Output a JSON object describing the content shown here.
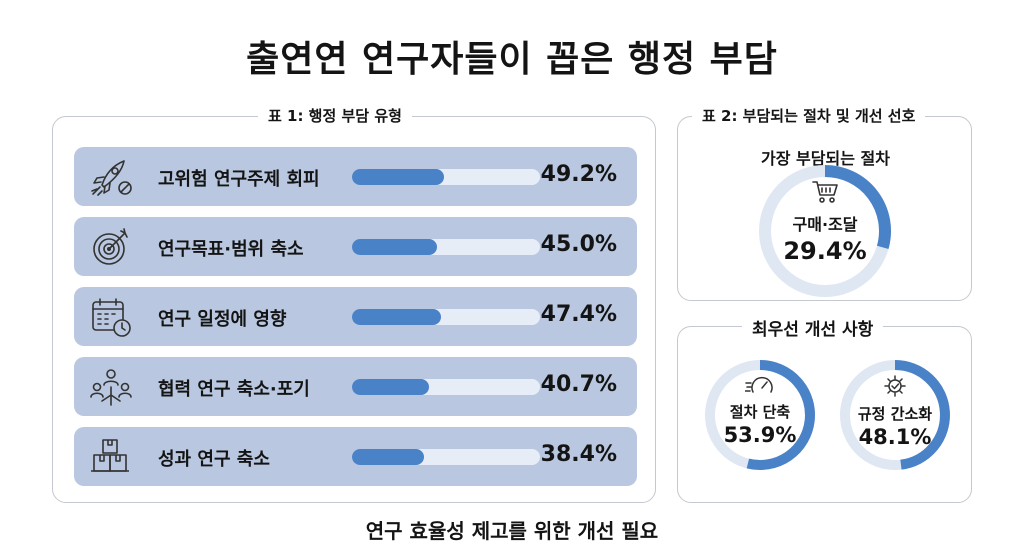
{
  "title": "출연연 연구자들이 꼽은 행정 부담",
  "footer": "연구 효율성 제고를 위한 개선 필요",
  "table1": {
    "title": "표 1: 행정 부담 유형",
    "rows": [
      {
        "label": "고위험 연구주제 회피",
        "value": "49.2%",
        "icon": "rocket-icon"
      },
      {
        "label": "연구목표·범위 축소",
        "value": "45.0%",
        "icon": "target-icon"
      },
      {
        "label": "연구 일정에 영향",
        "value": "47.4%",
        "icon": "calendar-clock-icon"
      },
      {
        "label": "협력 연구 축소·포기",
        "value": "40.7%",
        "icon": "people-network-icon"
      },
      {
        "label": "성과 연구 축소",
        "value": "38.4%",
        "icon": "boxes-icon"
      }
    ]
  },
  "table2": {
    "title": "표 2: 부담되는 절차 및 개선 선호",
    "subtitle": "가장 부담되는 절차",
    "donut": {
      "label": "구매·조달",
      "value": "29.4%",
      "icon": "shopping-cart-icon"
    }
  },
  "improvement": {
    "title": "최우선 개선 사항",
    "donuts": [
      {
        "label": "절차 단축",
        "value": "53.9%",
        "icon": "speedometer-icon"
      },
      {
        "label": "규정 간소화",
        "value": "48.1%",
        "icon": "gear-check-icon"
      }
    ]
  },
  "chart_data": [
    {
      "type": "bar",
      "title": "표 1: 행정 부담 유형",
      "categories": [
        "고위험 연구주제 회피",
        "연구목표·범위 축소",
        "연구 일정에 영향",
        "협력 연구 축소·포기",
        "성과 연구 축소"
      ],
      "values": [
        49.2,
        45.0,
        47.4,
        40.7,
        38.4
      ],
      "unit": "%",
      "ylim": [
        0,
        100
      ],
      "bar_color": "#4a82c8"
    },
    {
      "type": "pie",
      "title": "가장 부담되는 절차",
      "categories": [
        "구매·조달"
      ],
      "values": [
        29.4
      ],
      "unit": "%",
      "color": "#4a82c8"
    },
    {
      "type": "pie",
      "title": "최우선 개선 사항",
      "categories": [
        "절차 단축",
        "규정 간소화"
      ],
      "values": [
        53.9,
        48.1
      ],
      "unit": "%",
      "color": "#4a82c8"
    }
  ]
}
